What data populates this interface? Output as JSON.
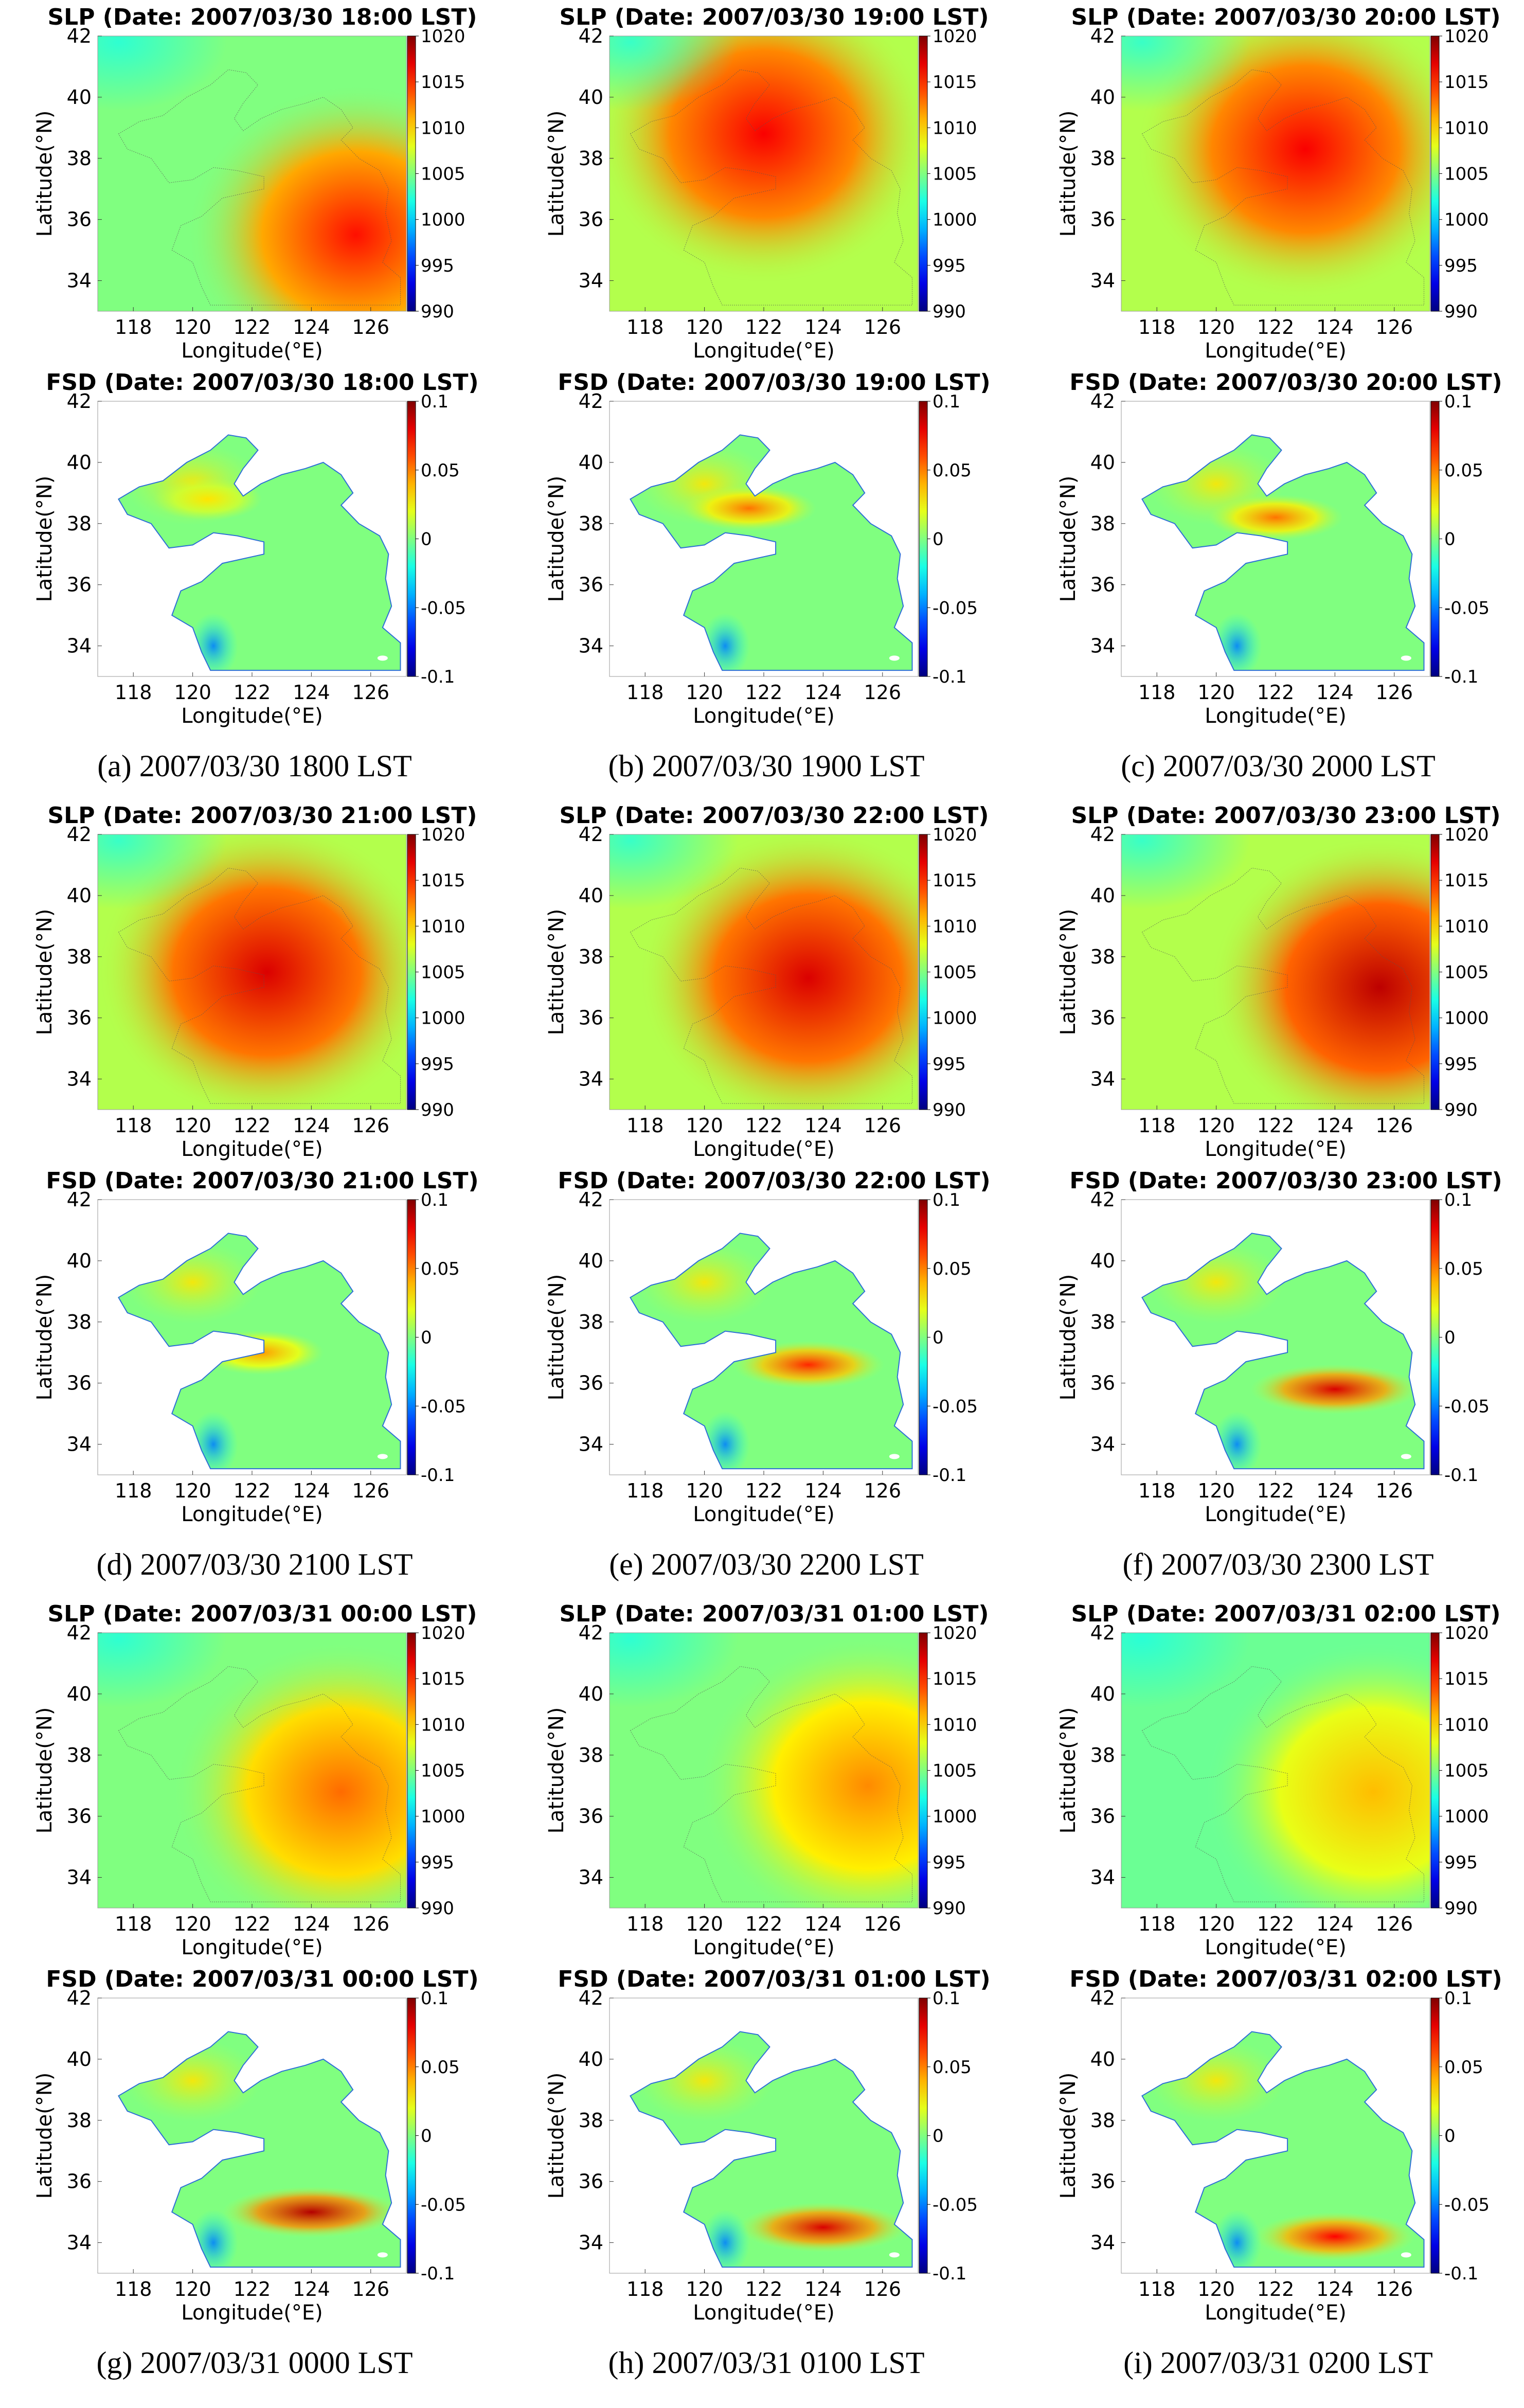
{
  "figure": {
    "panels": [
      {
        "label": "(a)",
        "caption": "(a)   2007/03/30 1800 LST"
      },
      {
        "label": "(b)",
        "caption": "(b) 2007/03/30 1900 LST"
      },
      {
        "label": "(c)",
        "caption": "(c) 2007/03/30 2000 LST"
      },
      {
        "label": "(d)",
        "caption": "(d) 2007/03/30 2100 LST"
      },
      {
        "label": "(e)",
        "caption": "(e) 2007/03/30 2200 LST"
      },
      {
        "label": "(f)",
        "caption": "(f) 2007/03/30 2300 LST"
      },
      {
        "label": "(g)",
        "caption": "(g) 2007/03/31 0000 LST"
      },
      {
        "label": "(h)",
        "caption": "(h) 2007/03/31 0100 LST"
      },
      {
        "label": "(i)",
        "caption": "(i) 2007/03/31 0200 LST"
      }
    ]
  },
  "chart_data": [
    {
      "type": "heatmap",
      "variable": "SLP",
      "title": "SLP (Date: 2007/03/30 18:00 LST)",
      "xlabel": "Longitude(°E)",
      "ylabel": "Latitude(°N)",
      "xticks": [
        "118",
        "120",
        "122",
        "124",
        "126"
      ],
      "yticks": [
        "34",
        "36",
        "38",
        "40",
        "42"
      ],
      "xlim": [
        116.8,
        127.2
      ],
      "ylim": [
        33,
        42
      ],
      "colorbar": {
        "min": 990,
        "max": 1020,
        "ticks": [
          "1020",
          "1015",
          "1010",
          "1005",
          "1000",
          "995",
          "990"
        ]
      },
      "high_center": [
        125.5,
        35.5
      ],
      "high_strength": 0.6,
      "base_level": 0.5
    },
    {
      "type": "heatmap",
      "variable": "SLP",
      "title": "SLP (Date: 2007/03/30 19:00 LST)",
      "xlabel": "Longitude(°E)",
      "ylabel": "Latitude(°N)",
      "xticks": [
        "118",
        "120",
        "122",
        "124",
        "126"
      ],
      "yticks": [
        "34",
        "36",
        "38",
        "40",
        "42"
      ],
      "xlim": [
        116.8,
        127.2
      ],
      "ylim": [
        33,
        42
      ],
      "colorbar": {
        "min": 990,
        "max": 1020,
        "ticks": [
          "1020",
          "1015",
          "1010",
          "1005",
          "1000",
          "995",
          "990"
        ]
      },
      "high_center": [
        122,
        38.8
      ],
      "high_strength": 0.55,
      "base_level": 0.55
    },
    {
      "type": "heatmap",
      "variable": "SLP",
      "title": "SLP (Date: 2007/03/30 20:00 LST)",
      "xlabel": "Longitude(°E)",
      "ylabel": "Latitude(°N)",
      "xticks": [
        "118",
        "120",
        "122",
        "124",
        "126"
      ],
      "yticks": [
        "34",
        "36",
        "38",
        "40",
        "42"
      ],
      "xlim": [
        116.8,
        127.2
      ],
      "ylim": [
        33,
        42
      ],
      "colorbar": {
        "min": 990,
        "max": 1020,
        "ticks": [
          "1020",
          "1015",
          "1010",
          "1005",
          "1000",
          "995",
          "990"
        ]
      },
      "high_center": [
        123,
        38.3
      ],
      "high_strength": 0.55,
      "base_level": 0.55
    },
    {
      "type": "heatmap",
      "variable": "FSD",
      "title": "FSD (Date: 2007/03/30 18:00 LST)",
      "xlabel": "Longitude(°E)",
      "ylabel": "Latitude(°N)",
      "xticks": [
        "118",
        "120",
        "122",
        "124",
        "126"
      ],
      "yticks": [
        "34",
        "36",
        "38",
        "40",
        "42"
      ],
      "xlim": [
        116.8,
        127.2
      ],
      "ylim": [
        33,
        42
      ],
      "colorbar": {
        "min": -0.1,
        "max": 0.1,
        "ticks": [
          "0.1",
          "0.05",
          "0",
          "-0.05",
          "-0.1"
        ]
      },
      "feature_center": [
        120.5,
        38.8
      ],
      "feature_strength": 0.2
    },
    {
      "type": "heatmap",
      "variable": "FSD",
      "title": "FSD (Date: 2007/03/30 19:00 LST)",
      "xlabel": "Longitude(°E)",
      "ylabel": "Latitude(°N)",
      "xticks": [
        "118",
        "120",
        "122",
        "124",
        "126"
      ],
      "yticks": [
        "34",
        "36",
        "38",
        "40",
        "42"
      ],
      "xlim": [
        116.8,
        127.2
      ],
      "ylim": [
        33,
        42
      ],
      "colorbar": {
        "min": -0.1,
        "max": 0.1,
        "ticks": [
          "0.1",
          "0.05",
          "0",
          "-0.05",
          "-0.1"
        ]
      },
      "feature_center": [
        121.5,
        38.5
      ],
      "feature_strength": 0.35
    },
    {
      "type": "heatmap",
      "variable": "FSD",
      "title": "FSD (Date: 2007/03/30 20:00 LST)",
      "xlabel": "Longitude(°E)",
      "ylabel": "Latitude(°N)",
      "xticks": [
        "118",
        "120",
        "122",
        "124",
        "126"
      ],
      "yticks": [
        "34",
        "36",
        "38",
        "40",
        "42"
      ],
      "xlim": [
        116.8,
        127.2
      ],
      "ylim": [
        33,
        42
      ],
      "colorbar": {
        "min": -0.1,
        "max": 0.1,
        "ticks": [
          "0.1",
          "0.05",
          "0",
          "-0.05",
          "-0.1"
        ]
      },
      "feature_center": [
        122,
        38.2
      ],
      "feature_strength": 0.35
    },
    {
      "type": "heatmap",
      "variable": "SLP",
      "title": "SLP (Date: 2007/03/30 21:00 LST)",
      "xlabel": "Longitude(°E)",
      "ylabel": "Latitude(°N)",
      "xticks": [
        "118",
        "120",
        "122",
        "124",
        "126"
      ],
      "yticks": [
        "34",
        "36",
        "38",
        "40",
        "42"
      ],
      "xlim": [
        116.8,
        127.2
      ],
      "ylim": [
        33,
        42
      ],
      "colorbar": {
        "min": 990,
        "max": 1020,
        "ticks": [
          "1020",
          "1015",
          "1010",
          "1005",
          "1000",
          "995",
          "990"
        ]
      },
      "high_center": [
        122.5,
        37.5
      ],
      "high_strength": 0.6,
      "base_level": 0.55
    },
    {
      "type": "heatmap",
      "variable": "SLP",
      "title": "SLP (Date: 2007/03/30 22:00 LST)",
      "xlabel": "Longitude(°E)",
      "ylabel": "Latitude(°N)",
      "xticks": [
        "118",
        "120",
        "122",
        "124",
        "126"
      ],
      "yticks": [
        "34",
        "36",
        "38",
        "40",
        "42"
      ],
      "xlim": [
        116.8,
        127.2
      ],
      "ylim": [
        33,
        42
      ],
      "colorbar": {
        "min": 990,
        "max": 1020,
        "ticks": [
          "1020",
          "1015",
          "1010",
          "1005",
          "1000",
          "995",
          "990"
        ]
      },
      "high_center": [
        123.5,
        37.3
      ],
      "high_strength": 0.6,
      "base_level": 0.55
    },
    {
      "type": "heatmap",
      "variable": "SLP",
      "title": "SLP (Date: 2007/03/30 23:00 LST)",
      "xlabel": "Longitude(°E)",
      "ylabel": "Latitude(°N)",
      "xticks": [
        "118",
        "120",
        "122",
        "124",
        "126"
      ],
      "yticks": [
        "34",
        "36",
        "38",
        "40",
        "42"
      ],
      "xlim": [
        116.8,
        127.2
      ],
      "ylim": [
        33,
        42
      ],
      "colorbar": {
        "min": 990,
        "max": 1020,
        "ticks": [
          "1020",
          "1015",
          "1010",
          "1005",
          "1000",
          "995",
          "990"
        ]
      },
      "high_center": [
        125.5,
        37
      ],
      "high_strength": 0.65,
      "base_level": 0.55
    },
    {
      "type": "heatmap",
      "variable": "FSD",
      "title": "FSD (Date: 2007/03/30 21:00 LST)",
      "xlabel": "Longitude(°E)",
      "ylabel": "Latitude(°N)",
      "xticks": [
        "118",
        "120",
        "122",
        "124",
        "126"
      ],
      "yticks": [
        "34",
        "36",
        "38",
        "40",
        "42"
      ],
      "xlim": [
        116.8,
        127.2
      ],
      "ylim": [
        33,
        42
      ],
      "colorbar": {
        "min": -0.1,
        "max": 0.1,
        "ticks": [
          "0.1",
          "0.05",
          "0",
          "-0.05",
          "-0.1"
        ]
      },
      "feature_center": [
        122.3,
        37
      ],
      "feature_strength": 0.3
    },
    {
      "type": "heatmap",
      "variable": "FSD",
      "title": "FSD (Date: 2007/03/30 22:00 LST)",
      "xlabel": "Longitude(°E)",
      "ylabel": "Latitude(°N)",
      "xticks": [
        "118",
        "120",
        "122",
        "124",
        "126"
      ],
      "yticks": [
        "34",
        "36",
        "38",
        "40",
        "42"
      ],
      "xlim": [
        116.8,
        127.2
      ],
      "ylim": [
        33,
        42
      ],
      "colorbar": {
        "min": -0.1,
        "max": 0.1,
        "ticks": [
          "0.1",
          "0.05",
          "0",
          "-0.05",
          "-0.1"
        ]
      },
      "feature_center": [
        123.5,
        36.6
      ],
      "feature_strength": 0.45
    },
    {
      "type": "heatmap",
      "variable": "FSD",
      "title": "FSD (Date: 2007/03/30 23:00 LST)",
      "xlabel": "Longitude(°E)",
      "ylabel": "Latitude(°N)",
      "xticks": [
        "118",
        "120",
        "122",
        "124",
        "126"
      ],
      "yticks": [
        "34",
        "36",
        "38",
        "40",
        "42"
      ],
      "xlim": [
        116.8,
        127.2
      ],
      "ylim": [
        33,
        42
      ],
      "colorbar": {
        "min": -0.1,
        "max": 0.1,
        "ticks": [
          "0.1",
          "0.05",
          "0",
          "-0.05",
          "-0.1"
        ]
      },
      "feature_center": [
        124,
        35.8
      ],
      "feature_strength": 0.55
    },
    {
      "type": "heatmap",
      "variable": "SLP",
      "title": "SLP (Date: 2007/03/31 00:00 LST)",
      "xlabel": "Longitude(°E)",
      "ylabel": "Latitude(°N)",
      "xticks": [
        "118",
        "120",
        "122",
        "124",
        "126"
      ],
      "yticks": [
        "34",
        "36",
        "38",
        "40",
        "42"
      ],
      "xlim": [
        116.8,
        127.2
      ],
      "ylim": [
        33,
        42
      ],
      "colorbar": {
        "min": 990,
        "max": 1020,
        "ticks": [
          "1020",
          "1015",
          "1010",
          "1005",
          "1000",
          "995",
          "990"
        ]
      },
      "high_center": [
        125,
        36.8
      ],
      "high_strength": 0.45,
      "base_level": 0.5
    },
    {
      "type": "heatmap",
      "variable": "SLP",
      "title": "SLP (Date: 2007/03/31 01:00 LST)",
      "xlabel": "Longitude(°E)",
      "ylabel": "Latitude(°N)",
      "xticks": [
        "118",
        "120",
        "122",
        "124",
        "126"
      ],
      "yticks": [
        "34",
        "36",
        "38",
        "40",
        "42"
      ],
      "xlim": [
        116.8,
        127.2
      ],
      "ylim": [
        33,
        42
      ],
      "colorbar": {
        "min": 990,
        "max": 1020,
        "ticks": [
          "1020",
          "1015",
          "1010",
          "1005",
          "1000",
          "995",
          "990"
        ]
      },
      "high_center": [
        125.5,
        37
      ],
      "high_strength": 0.4,
      "base_level": 0.5
    },
    {
      "type": "heatmap",
      "variable": "SLP",
      "title": "SLP (Date: 2007/03/31 02:00 LST)",
      "xlabel": "Longitude(°E)",
      "ylabel": "Latitude(°N)",
      "xticks": [
        "118",
        "120",
        "122",
        "124",
        "126"
      ],
      "yticks": [
        "34",
        "36",
        "38",
        "40",
        "42"
      ],
      "xlim": [
        116.8,
        127.2
      ],
      "ylim": [
        33,
        42
      ],
      "colorbar": {
        "min": 990,
        "max": 1020,
        "ticks": [
          "1020",
          "1015",
          "1010",
          "1005",
          "1000",
          "995",
          "990"
        ]
      },
      "high_center": [
        125.3,
        36.8
      ],
      "high_strength": 0.35,
      "base_level": 0.48
    },
    {
      "type": "heatmap",
      "variable": "FSD",
      "title": "FSD (Date: 2007/03/31 00:00 LST)",
      "xlabel": "Longitude(°E)",
      "ylabel": "Latitude(°N)",
      "xticks": [
        "118",
        "120",
        "122",
        "124",
        "126"
      ],
      "yticks": [
        "34",
        "36",
        "38",
        "40",
        "42"
      ],
      "xlim": [
        116.8,
        127.2
      ],
      "ylim": [
        33,
        42
      ],
      "colorbar": {
        "min": -0.1,
        "max": 0.1,
        "ticks": [
          "0.1",
          "0.05",
          "0",
          "-0.05",
          "-0.1"
        ]
      },
      "feature_center": [
        124,
        35
      ],
      "feature_strength": 0.6
    },
    {
      "type": "heatmap",
      "variable": "FSD",
      "title": "FSD (Date: 2007/03/31 01:00 LST)",
      "xlabel": "Longitude(°E)",
      "ylabel": "Latitude(°N)",
      "xticks": [
        "118",
        "120",
        "122",
        "124",
        "126"
      ],
      "yticks": [
        "34",
        "36",
        "38",
        "40",
        "42"
      ],
      "xlim": [
        116.8,
        127.2
      ],
      "ylim": [
        33,
        42
      ],
      "colorbar": {
        "min": -0.1,
        "max": 0.1,
        "ticks": [
          "0.1",
          "0.05",
          "0",
          "-0.05",
          "-0.1"
        ]
      },
      "feature_center": [
        124,
        34.5
      ],
      "feature_strength": 0.55
    },
    {
      "type": "heatmap",
      "variable": "FSD",
      "title": "FSD (Date: 2007/03/31 02:00 LST)",
      "xlabel": "Longitude(°E)",
      "ylabel": "Latitude(°N)",
      "xticks": [
        "118",
        "120",
        "122",
        "124",
        "126"
      ],
      "yticks": [
        "34",
        "36",
        "38",
        "40",
        "42"
      ],
      "xlim": [
        116.8,
        127.2
      ],
      "ylim": [
        33,
        42
      ],
      "colorbar": {
        "min": -0.1,
        "max": 0.1,
        "ticks": [
          "0.1",
          "0.05",
          "0",
          "-0.05",
          "-0.1"
        ]
      },
      "feature_center": [
        124,
        34.2
      ],
      "feature_strength": 0.5
    }
  ]
}
